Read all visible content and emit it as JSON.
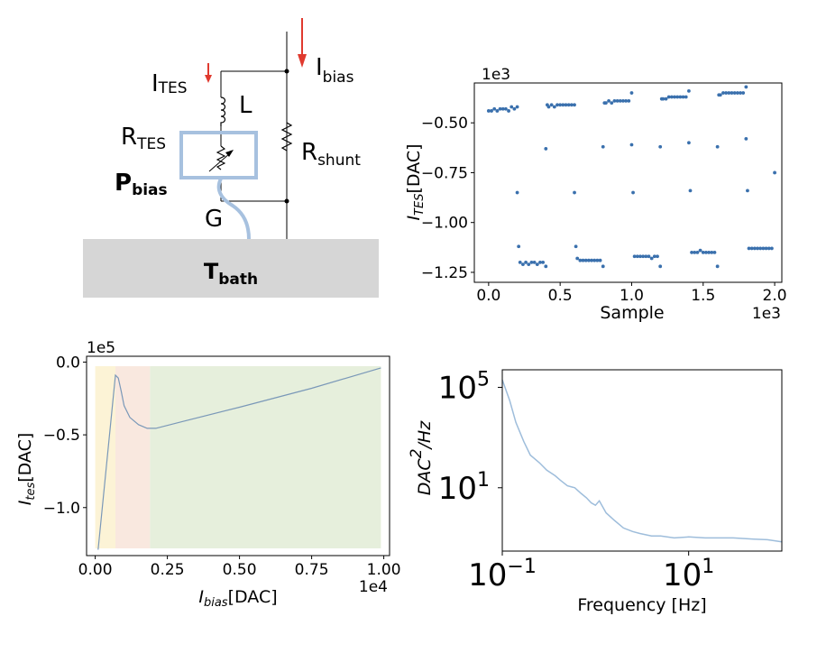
{
  "circuit": {
    "i_tes": {
      "main": "I",
      "sub": "TES"
    },
    "i_bias": {
      "main": "I",
      "sub": "bias"
    },
    "l": "L",
    "r_tes": {
      "main": "R",
      "sub": "TES"
    },
    "r_shunt": {
      "main": "R",
      "sub": "shunt"
    },
    "p_bias": {
      "main": "P",
      "sub": "bias"
    },
    "g": "G",
    "t_bath": {
      "main": "T",
      "sub": "bath"
    },
    "colors": {
      "arrow": "#e03a2f",
      "tes_box": "#a7c1df",
      "bath": "#d6d6d6"
    }
  },
  "chart_data": [
    {
      "type": "scatter",
      "xlabel": "Sample",
      "ylabel": "I_TES[DAC]",
      "x_offset_label": "1e3",
      "y_offset_label": "1e3",
      "xlim": [
        -0.1,
        2.05
      ],
      "ylim": [
        -1.3,
        -0.3
      ],
      "xticks": [
        0.0,
        0.5,
        1.0,
        1.5,
        2.0
      ],
      "xtick_labels": [
        "0.0",
        "0.5",
        "1.0",
        "1.5",
        "2.0"
      ],
      "yticks": [
        -0.5,
        -0.75,
        -1.0,
        -1.25
      ],
      "ytick_labels": [
        "−0.50",
        "−0.75",
        "−1.00",
        "−1.25"
      ],
      "color": "#3a70ad",
      "series": [
        {
          "x": [
            0.0,
            0.02,
            0.04,
            0.06,
            0.08,
            0.1,
            0.12,
            0.14,
            0.16,
            0.18,
            0.2,
            0.2,
            0.21,
            0.22,
            0.24,
            0.26,
            0.28,
            0.3,
            0.32,
            0.34,
            0.36,
            0.38,
            0.4,
            0.4,
            0.41,
            0.42,
            0.44,
            0.46,
            0.48,
            0.5,
            0.52,
            0.54,
            0.56,
            0.58,
            0.6,
            0.6,
            0.61,
            0.62,
            0.64,
            0.66,
            0.68,
            0.7,
            0.72,
            0.74,
            0.76,
            0.78,
            0.8,
            0.8,
            0.81,
            0.82,
            0.84,
            0.86,
            0.88,
            0.9,
            0.92,
            0.94,
            0.96,
            0.98,
            1.0,
            1.0,
            1.01,
            1.02,
            1.04,
            1.06,
            1.08,
            1.1,
            1.12,
            1.14,
            1.16,
            1.18,
            1.2,
            1.2,
            1.21,
            1.22,
            1.24,
            1.26,
            1.28,
            1.3,
            1.32,
            1.34,
            1.36,
            1.38,
            1.4,
            1.4,
            1.41,
            1.42,
            1.44,
            1.46,
            1.48,
            1.5,
            1.52,
            1.54,
            1.56,
            1.58,
            1.6,
            1.6,
            1.61,
            1.62,
            1.64,
            1.66,
            1.68,
            1.7,
            1.72,
            1.74,
            1.76,
            1.78,
            1.8,
            1.8,
            1.81,
            1.82,
            1.84,
            1.86,
            1.88,
            1.9,
            1.92,
            1.94,
            1.96,
            1.98,
            2.0
          ],
          "y": [
            -0.44,
            -0.44,
            -0.43,
            -0.44,
            -0.43,
            -0.43,
            -0.43,
            -0.44,
            -0.42,
            -0.43,
            -0.42,
            -0.85,
            -1.12,
            -1.2,
            -1.21,
            -1.2,
            -1.21,
            -1.2,
            -1.2,
            -1.21,
            -1.2,
            -1.2,
            -1.22,
            -0.63,
            -0.41,
            -0.42,
            -0.41,
            -0.42,
            -0.41,
            -0.41,
            -0.41,
            -0.41,
            -0.41,
            -0.41,
            -0.41,
            -0.85,
            -1.12,
            -1.18,
            -1.19,
            -1.19,
            -1.19,
            -1.19,
            -1.19,
            -1.19,
            -1.19,
            -1.19,
            -1.22,
            -0.62,
            -0.4,
            -0.4,
            -0.39,
            -0.4,
            -0.39,
            -0.39,
            -0.39,
            -0.39,
            -0.39,
            -0.39,
            -0.35,
            -0.61,
            -0.85,
            -1.17,
            -1.17,
            -1.17,
            -1.17,
            -1.17,
            -1.17,
            -1.18,
            -1.17,
            -1.17,
            -1.22,
            -0.62,
            -0.38,
            -0.38,
            -0.38,
            -0.37,
            -0.37,
            -0.37,
            -0.37,
            -0.37,
            -0.37,
            -0.37,
            -0.34,
            -0.6,
            -0.84,
            -1.15,
            -1.15,
            -1.15,
            -1.14,
            -1.15,
            -1.15,
            -1.15,
            -1.15,
            -1.15,
            -1.22,
            -0.62,
            -0.36,
            -0.36,
            -0.35,
            -0.35,
            -0.35,
            -0.35,
            -0.35,
            -0.35,
            -0.35,
            -0.35,
            -0.32,
            -0.58,
            -0.84,
            -1.13,
            -1.13,
            -1.13,
            -1.13,
            -1.13,
            -1.13,
            -1.13,
            -1.13,
            -1.13,
            -0.75
          ]
        }
      ]
    },
    {
      "type": "line",
      "xlabel": "I_bias[DAC]",
      "ylabel": "I_tes[DAC]",
      "x_offset_label": "1e4",
      "y_offset_label": "1e5",
      "xlim": [
        -0.03,
        1.02
      ],
      "ylim": [
        -1.33,
        0.04
      ],
      "xticks": [
        0.0,
        0.25,
        0.5,
        0.75,
        1.0
      ],
      "xtick_labels": [
        "0.00",
        "0.25",
        "0.50",
        "0.75",
        "1.00"
      ],
      "yticks": [
        0.0,
        -0.5,
        -1.0
      ],
      "ytick_labels": [
        "0.0",
        "−0.5",
        "−1.0"
      ],
      "regions": [
        {
          "x0": 0.0,
          "x1": 0.07,
          "color": "#fcf3d6"
        },
        {
          "x0": 0.07,
          "x1": 0.19,
          "color": "#f9e8df"
        },
        {
          "x0": 0.19,
          "x1": 0.99,
          "color": "#e6efdc"
        }
      ],
      "color": "#7a98b8",
      "x": [
        0.01,
        0.07,
        0.08,
        0.09,
        0.1,
        0.12,
        0.15,
        0.18,
        0.21,
        0.3,
        0.5,
        0.75,
        0.99
      ],
      "y": [
        -1.29,
        -0.09,
        -0.11,
        -0.2,
        -0.3,
        -0.38,
        -0.43,
        -0.455,
        -0.455,
        -0.41,
        -0.31,
        -0.18,
        -0.04
      ]
    },
    {
      "type": "line",
      "xlabel": "Frequency [Hz]",
      "ylabel": "DAC²/Hz",
      "xscale": "log",
      "yscale": "log",
      "xlim": [
        0.1,
        100
      ],
      "ylim": [
        0.03,
        500000
      ],
      "xticks": [
        0.1,
        10
      ],
      "xtick_labels": [
        {
          "base": "10",
          "exp": "−1"
        },
        {
          "base": "10",
          "exp": "1"
        }
      ],
      "yticks": [
        10,
        100000
      ],
      "ytick_labels": [
        {
          "base": "10",
          "exp": "1"
        },
        {
          "base": "10",
          "exp": "5"
        }
      ],
      "color": "#9ebddb",
      "x": [
        0.1,
        0.12,
        0.14,
        0.17,
        0.2,
        0.25,
        0.3,
        0.37,
        0.42,
        0.5,
        0.6,
        0.7,
        0.8,
        0.9,
        1.0,
        1.1,
        1.3,
        1.6,
        2.0,
        2.5,
        3.0,
        4.0,
        5.0,
        7.0,
        10.0,
        15.0,
        20.0,
        30.0,
        50.0,
        70.0,
        100.0
      ],
      "y": [
        200000,
        30000,
        4000,
        700,
        200,
        100,
        50,
        30,
        20,
        12,
        10,
        6,
        4,
        2.5,
        2,
        3,
        1,
        0.5,
        0.25,
        0.18,
        0.15,
        0.12,
        0.12,
        0.1,
        0.11,
        0.1,
        0.1,
        0.1,
        0.09,
        0.085,
        0.07
      ]
    }
  ]
}
